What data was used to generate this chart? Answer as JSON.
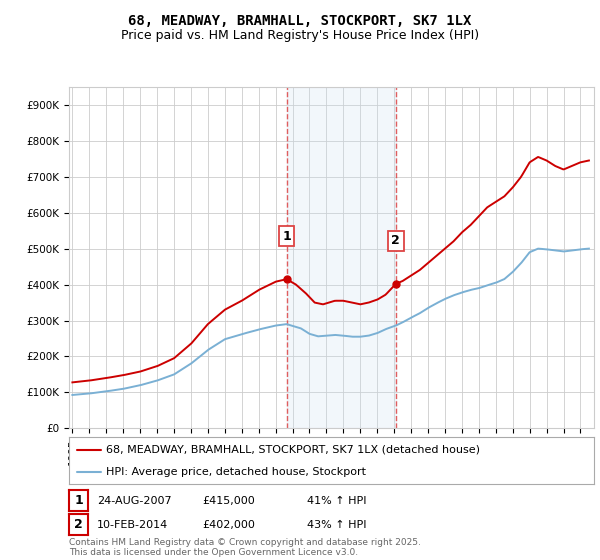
{
  "title": "68, MEADWAY, BRAMHALL, STOCKPORT, SK7 1LX",
  "subtitle": "Price paid vs. HM Land Registry's House Price Index (HPI)",
  "ylim": [
    0,
    950000
  ],
  "yticks": [
    0,
    100000,
    200000,
    300000,
    400000,
    500000,
    600000,
    700000,
    800000,
    900000
  ],
  "ytick_labels": [
    "£0",
    "£100K",
    "£200K",
    "£300K",
    "£400K",
    "£500K",
    "£600K",
    "£700K",
    "£800K",
    "£900K"
  ],
  "xlim_start": 1994.8,
  "xlim_end": 2025.8,
  "background_color": "#ffffff",
  "plot_bg_color": "#ffffff",
  "grid_color": "#cccccc",
  "red_line_color": "#cc0000",
  "blue_line_color": "#7ab0d4",
  "shade_color": "#cce0f0",
  "dashed_line_color": "#dd4444",
  "marker1_date": 2007.65,
  "marker2_date": 2014.1,
  "marker1_price": 415000,
  "marker2_price": 402000,
  "legend1": "68, MEADWAY, BRAMHALL, STOCKPORT, SK7 1LX (detached house)",
  "legend2": "HPI: Average price, detached house, Stockport",
  "ann1_text": "24-AUG-2007",
  "ann1_price": "£415,000",
  "ann1_hpi": "41% ↑ HPI",
  "ann2_text": "10-FEB-2014",
  "ann2_price": "£402,000",
  "ann2_hpi": "43% ↑ HPI",
  "footer": "Contains HM Land Registry data © Crown copyright and database right 2025.\nThis data is licensed under the Open Government Licence v3.0.",
  "title_fontsize": 10,
  "subtitle_fontsize": 9,
  "tick_fontsize": 7.5,
  "legend_fontsize": 8,
  "ann_fontsize": 8
}
